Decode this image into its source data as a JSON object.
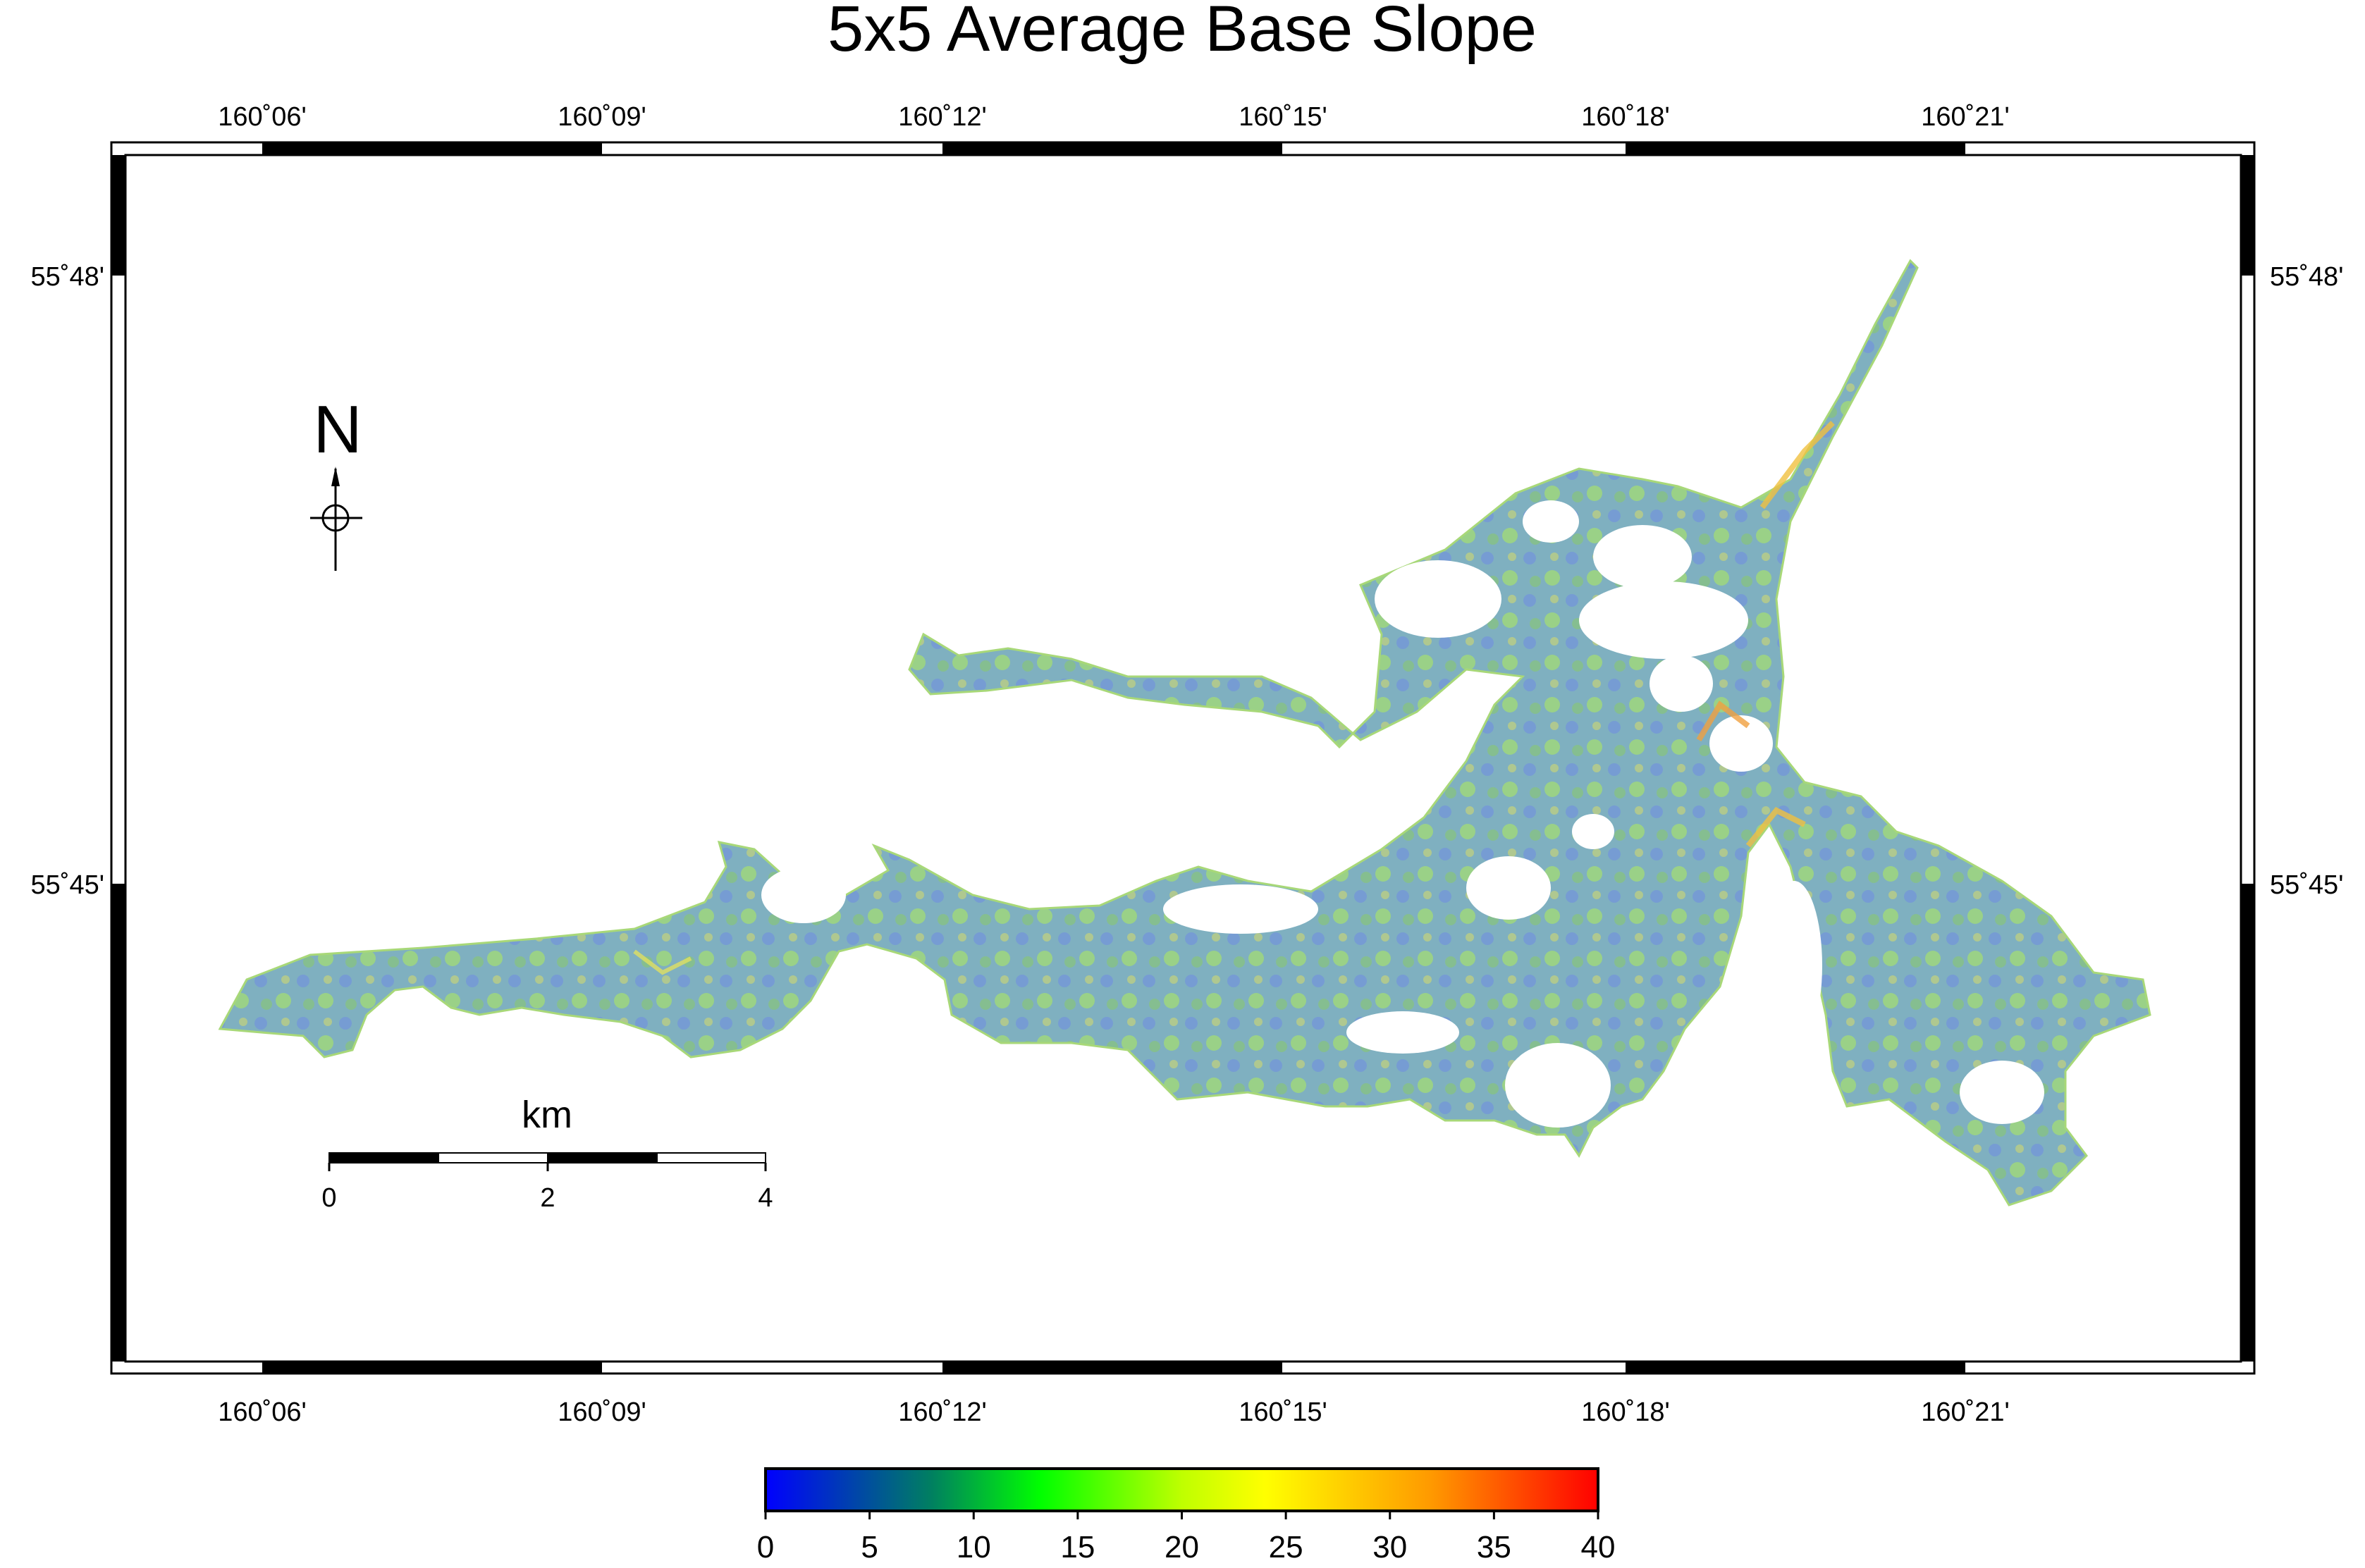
{
  "title": "5x5 Average Base Slope",
  "map": {
    "lon_ticks": [
      "160˚06'",
      "160˚09'",
      "160˚12'",
      "160˚15'",
      "160˚18'",
      "160˚21'"
    ],
    "lat_ticks": [
      "55˚48'",
      "55˚45'"
    ]
  },
  "north_arrow": {
    "label": "N"
  },
  "scale_bar": {
    "unit": "km",
    "ticks": [
      "0",
      "2",
      "4"
    ]
  },
  "colorbar": {
    "ticks": [
      "0",
      "5",
      "10",
      "15",
      "20",
      "25",
      "30",
      "35",
      "40"
    ],
    "colors": [
      "#0000ff",
      "#00ff00",
      "#ffff00",
      "#ff0000"
    ]
  },
  "colors": {
    "slope_low": "#5a7fd6",
    "slope_mid": "#9ad86a",
    "slope_high": "#f0c040"
  }
}
